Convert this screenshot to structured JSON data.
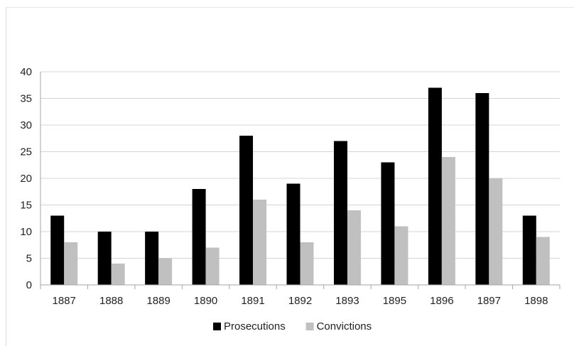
{
  "chart_data": {
    "type": "bar",
    "title": "",
    "xlabel": "",
    "ylabel": "",
    "categories": [
      "1887",
      "1888",
      "1889",
      "1890",
      "1891",
      "1892",
      "1893",
      "1895",
      "1896",
      "1897",
      "1898"
    ],
    "series": [
      {
        "name": "Prosecutions",
        "color": "#000000",
        "values": [
          13,
          10,
          10,
          18,
          28,
          19,
          27,
          23,
          37,
          36,
          13
        ]
      },
      {
        "name": "Convictions",
        "color": "#c0c0c0",
        "values": [
          8,
          4,
          5,
          7,
          16,
          8,
          14,
          11,
          24,
          20,
          9
        ]
      }
    ],
    "ylim": [
      0,
      40
    ],
    "yticks": [
      0,
      5,
      10,
      15,
      20,
      25,
      30,
      35,
      40
    ],
    "grid": true,
    "legend_position": "bottom"
  }
}
